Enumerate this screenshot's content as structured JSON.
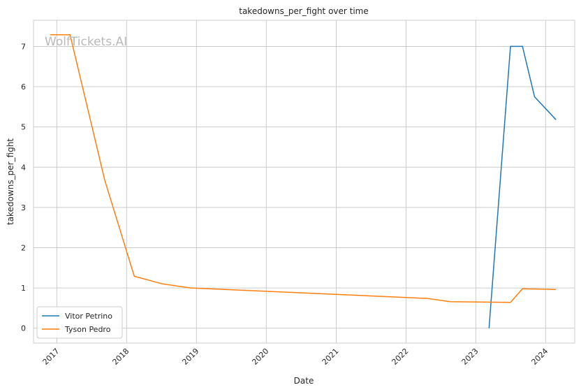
{
  "chart_data": {
    "type": "line",
    "title": "takedowns_per_fight over time",
    "xlabel": "Date",
    "ylabel": "takedowns_per_fight",
    "watermark": "WolfTickets.AI",
    "x_ticks": [
      "2017",
      "2018",
      "2019",
      "2020",
      "2021",
      "2022",
      "2023",
      "2024"
    ],
    "y_ticks": [
      "0",
      "1",
      "2",
      "3",
      "4",
      "5",
      "6",
      "7"
    ],
    "xlim": [
      "2016-09-01",
      "2024-06-01"
    ],
    "ylim": [
      -0.37,
      7.65
    ],
    "grid": true,
    "legend_position": "lower-left",
    "series": [
      {
        "name": "Vitor Petrino",
        "color": "#1f77b4",
        "points": [
          [
            "2023-03-11",
            0.0
          ],
          [
            "2023-07-01",
            7.0
          ],
          [
            "2023-09-02",
            7.0
          ],
          [
            "2023-11-04",
            5.75
          ],
          [
            "2024-02-24",
            5.18
          ]
        ]
      },
      {
        "name": "Tyson Pedro",
        "color": "#ff7f0e",
        "points": [
          [
            "2016-11-27",
            7.29
          ],
          [
            "2017-03-11",
            7.29
          ],
          [
            "2017-09-09",
            3.67
          ],
          [
            "2018-02-10",
            1.29
          ],
          [
            "2018-07-07",
            1.1
          ],
          [
            "2018-12-02",
            1.0
          ],
          [
            "2022-04-23",
            0.74
          ],
          [
            "2022-08-20",
            0.66
          ],
          [
            "2023-07-01",
            0.64
          ],
          [
            "2023-09-02",
            0.98
          ],
          [
            "2024-02-24",
            0.96
          ]
        ]
      }
    ]
  }
}
